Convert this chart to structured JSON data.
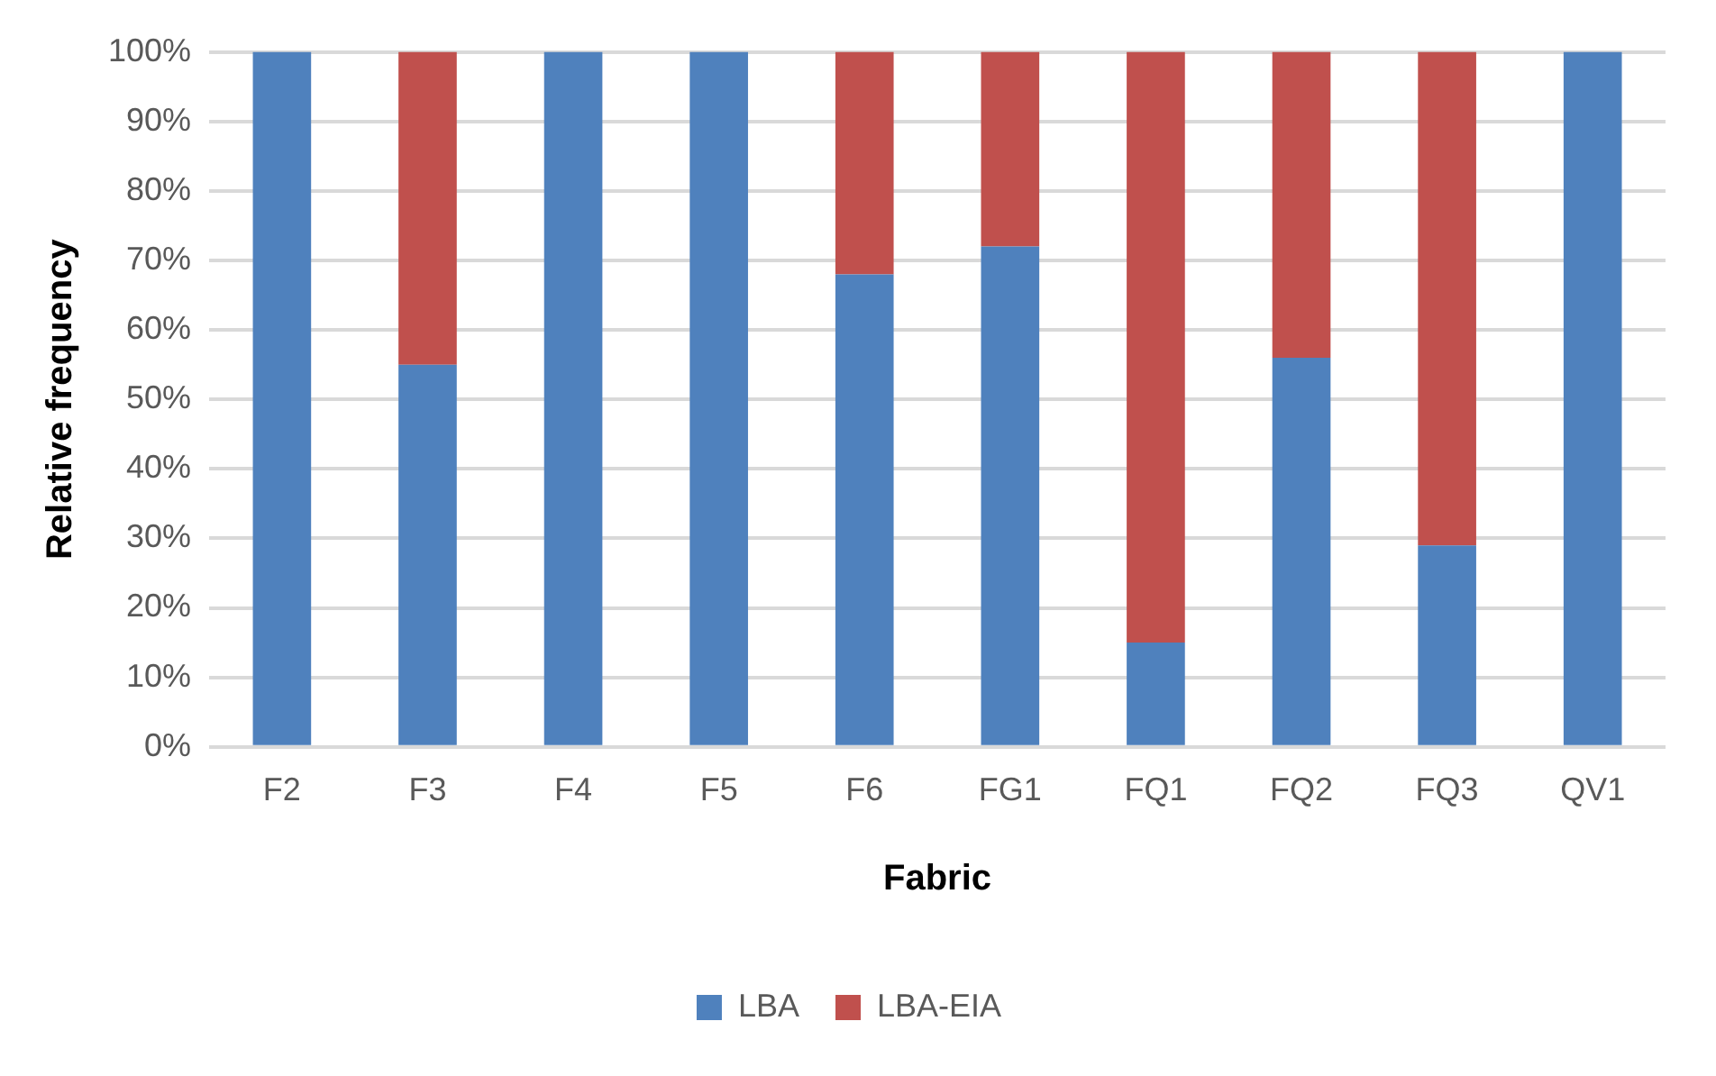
{
  "chart_data": {
    "type": "bar",
    "stacked": true,
    "xlabel": "Fabric",
    "ylabel": "Relative frequency",
    "categories": [
      "F2",
      "F3",
      "F4",
      "F5",
      "F6",
      "FG1",
      "FQ1",
      "FQ2",
      "FQ3",
      "QV1"
    ],
    "series": [
      {
        "name": "LBA",
        "color": "#4f81bd",
        "values": [
          100,
          55,
          100,
          100,
          68,
          72,
          15,
          56,
          29,
          100
        ]
      },
      {
        "name": "LBA-EIA",
        "color": "#c0504d",
        "values": [
          0,
          45,
          0,
          0,
          32,
          28,
          85,
          44,
          71,
          0
        ]
      }
    ],
    "ylim": [
      0,
      100
    ],
    "yticks": [
      {
        "value": 0,
        "label": "0%"
      },
      {
        "value": 10,
        "label": "10%"
      },
      {
        "value": 20,
        "label": "20%"
      },
      {
        "value": 30,
        "label": "30%"
      },
      {
        "value": 40,
        "label": "40%"
      },
      {
        "value": 50,
        "label": "50%"
      },
      {
        "value": 60,
        "label": "60%"
      },
      {
        "value": 70,
        "label": "70%"
      },
      {
        "value": 80,
        "label": "80%"
      },
      {
        "value": 90,
        "label": "90%"
      },
      {
        "value": 100,
        "label": "100%"
      }
    ],
    "grid": "y",
    "legend": "bottom"
  }
}
